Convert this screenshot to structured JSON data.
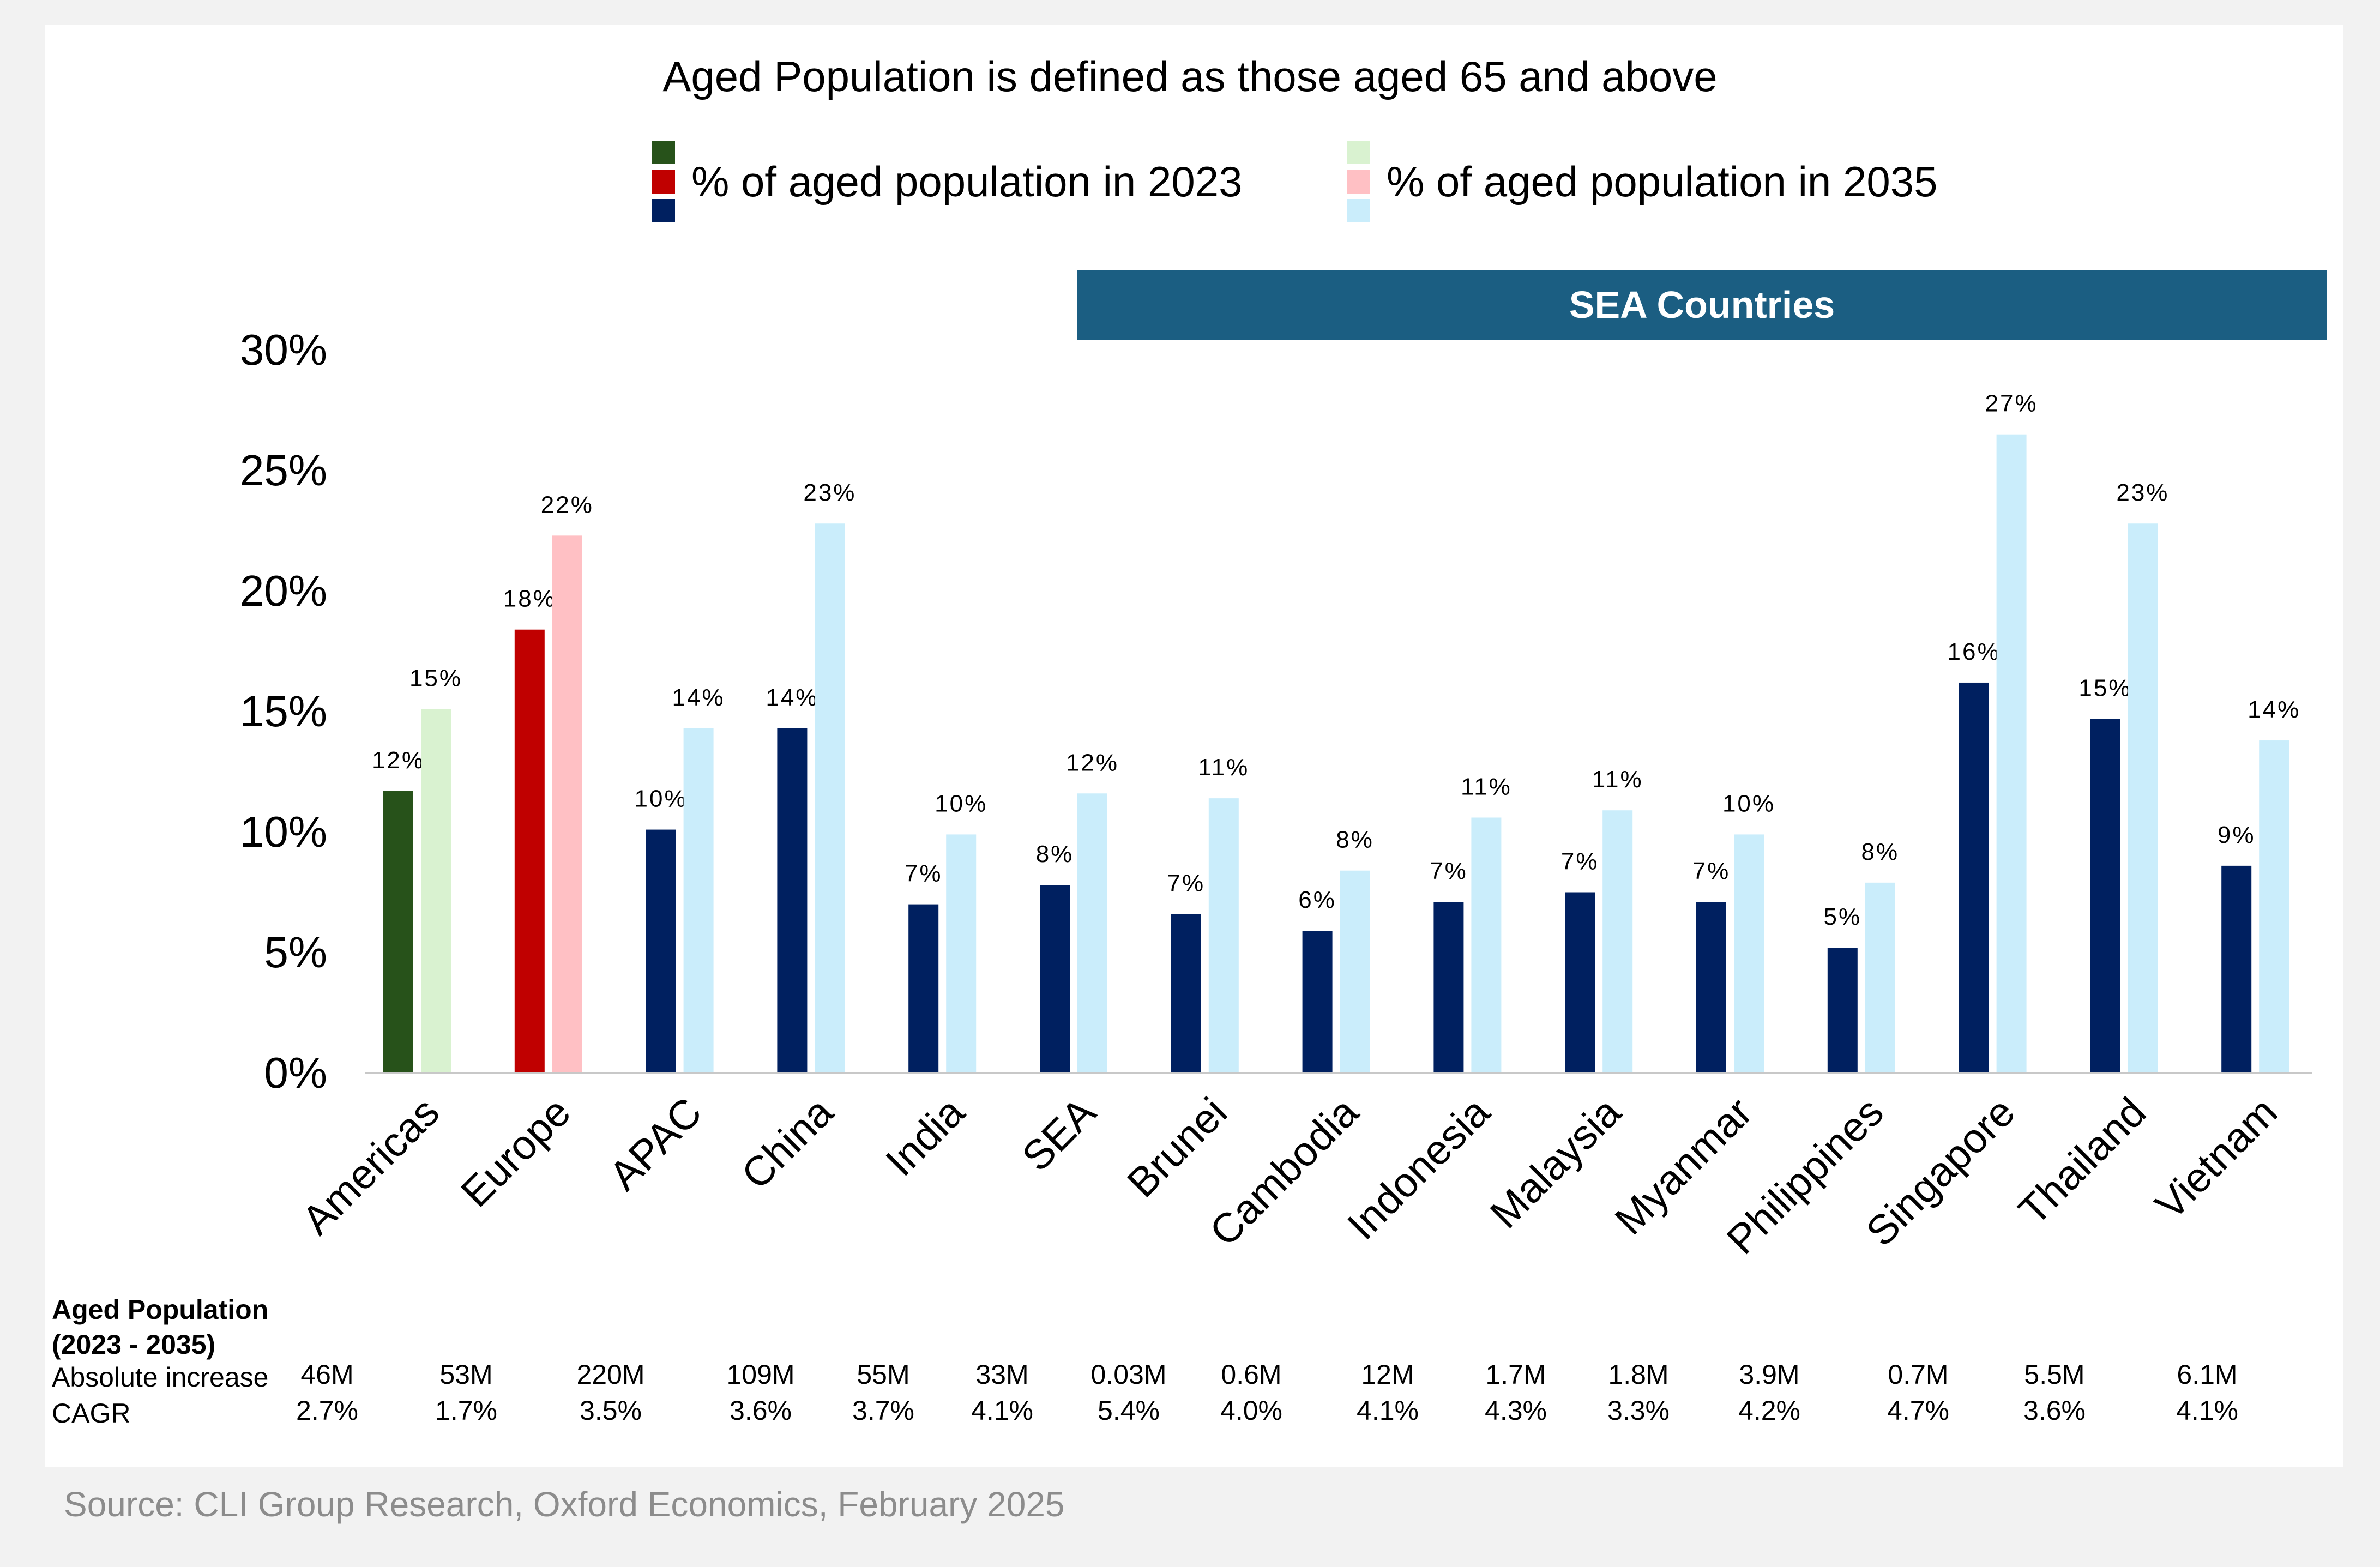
{
  "title": "Aged Population is defined as those aged 65 and above",
  "legend": [
    {
      "label": "% of aged population in 2023",
      "colors": [
        "#27521a",
        "#c00000",
        "#002060"
      ]
    },
    {
      "label": "% of aged population in 2035",
      "colors": [
        "#d9f2d0",
        "#ffc0c4",
        "#caedfb"
      ]
    }
  ],
  "banner": "SEA Countries",
  "chart_data": {
    "type": "bar",
    "title": "Aged Population is defined as those aged 65 and above",
    "categories": [
      "Americas",
      "Europe",
      "APAC",
      "China",
      "India",
      "SEA",
      "Brunei",
      "Cambodia",
      "Indonesia",
      "Malaysia",
      "Myanmar",
      "Philippines",
      "Singapore",
      "Thailand",
      "Vietnam"
    ],
    "series": [
      {
        "name": "% of aged population in 2023",
        "values": [
          11.7,
          18.4,
          10.1,
          14.3,
          7.0,
          7.8,
          6.6,
          5.9,
          7.1,
          7.5,
          7.1,
          5.2,
          16.2,
          14.7,
          8.6
        ],
        "labels": [
          "12%",
          "18%",
          "10%",
          "14%",
          "7%",
          "8%",
          "7%",
          "6%",
          "7%",
          "7%",
          "7%",
          "5%",
          "16%",
          "15%",
          "9%"
        ],
        "colors": [
          "#27521a",
          "#c00000",
          "#002060",
          "#002060",
          "#002060",
          "#002060",
          "#002060",
          "#002060",
          "#002060",
          "#002060",
          "#002060",
          "#002060",
          "#002060",
          "#002060",
          "#002060"
        ]
      },
      {
        "name": "% of aged population in 2035",
        "values": [
          15.1,
          22.3,
          14.3,
          22.8,
          9.9,
          11.6,
          11.4,
          8.4,
          10.6,
          10.9,
          9.9,
          7.9,
          26.5,
          22.8,
          13.8
        ],
        "labels": [
          "15%",
          "22%",
          "14%",
          "23%",
          "10%",
          "12%",
          "11%",
          "8%",
          "11%",
          "11%",
          "10%",
          "8%",
          "27%",
          "23%",
          "14%"
        ],
        "colors": [
          "#d9f2d0",
          "#ffc0c4",
          "#caedfb",
          "#caedfb",
          "#caedfb",
          "#caedfb",
          "#caedfb",
          "#caedfb",
          "#caedfb",
          "#caedfb",
          "#caedfb",
          "#caedfb",
          "#caedfb",
          "#caedfb",
          "#caedfb"
        ]
      }
    ],
    "yticks": [
      "0%",
      "5%",
      "10%",
      "15%",
      "20%",
      "25%",
      "30%"
    ],
    "ylim": [
      0,
      30
    ],
    "xlabel": "",
    "ylabel": ""
  },
  "table": {
    "heading_line1": "Aged Population",
    "heading_line2": "(2023 - 2035)",
    "row1_label": "Absolute increase",
    "row2_label": "CAGR",
    "absolute_increase": [
      "46M",
      "53M",
      "220M",
      "109M",
      "55M",
      "33M",
      "0.03M",
      "0.6M",
      "12M",
      "1.7M",
      "1.8M",
      "3.9M",
      "0.7M",
      "5.5M",
      "6.1M"
    ],
    "cagr": [
      "2.7%",
      "1.7%",
      "3.5%",
      "3.6%",
      "3.7%",
      "4.1%",
      "5.4%",
      "4.0%",
      "4.1%",
      "4.3%",
      "3.3%",
      "4.2%",
      "4.7%",
      "3.6%",
      "4.1%"
    ]
  },
  "source": "Source: CLI Group Research, Oxford Economics, February 2025"
}
